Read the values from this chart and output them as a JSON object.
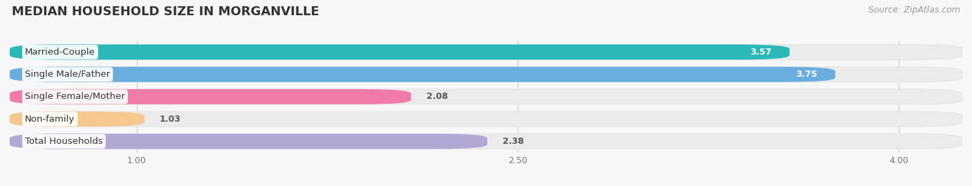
{
  "title": "MEDIAN HOUSEHOLD SIZE IN MORGANVILLE",
  "source": "Source: ZipAtlas.com",
  "categories": [
    "Married-Couple",
    "Single Male/Father",
    "Single Female/Mother",
    "Non-family",
    "Total Households"
  ],
  "values": [
    3.57,
    3.75,
    2.08,
    1.03,
    2.38
  ],
  "bar_colors": [
    "#2ab8b8",
    "#6aaee0",
    "#f07baa",
    "#f5c98e",
    "#b3a8d4"
  ],
  "bar_edge_colors": [
    "#1a9999",
    "#4a90c4",
    "#e06090",
    "#e8b07a",
    "#9b90c0"
  ],
  "xlim": [
    0.5,
    4.25
  ],
  "xticks": [
    1.0,
    2.5,
    4.0
  ],
  "background_color": "#f7f7f7",
  "bar_bg_color": "#ebebeb",
  "title_fontsize": 13,
  "source_fontsize": 9,
  "label_fontsize": 9.5,
  "value_fontsize": 9
}
